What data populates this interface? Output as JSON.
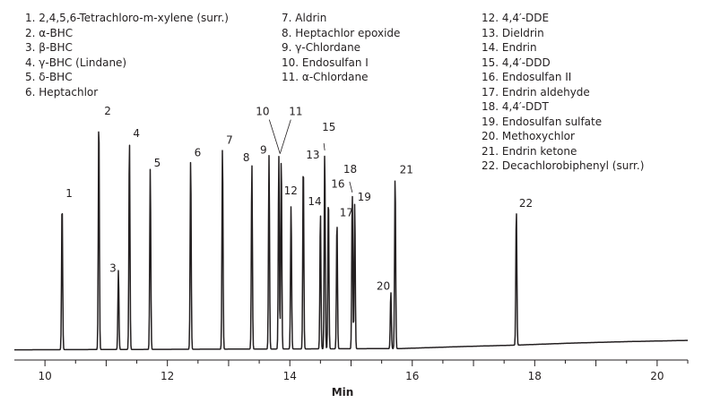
{
  "legend": {
    "columns": [
      [
        {
          "num": "1.",
          "name": "2,4,5,6-Tetrachloro-m-xylene (surr.)"
        },
        {
          "num": "2.",
          "name": "α-BHC"
        },
        {
          "num": "3.",
          "name": "β-BHC"
        },
        {
          "num": "4.",
          "name": "γ-BHC (Lindane)"
        },
        {
          "num": "5.",
          "name": "δ-BHC"
        },
        {
          "num": "6.",
          "name": "Heptachlor"
        }
      ],
      [
        {
          "num": "7.",
          "name": "Aldrin"
        },
        {
          "num": "8.",
          "name": "Heptachlor epoxide"
        },
        {
          "num": "9.",
          "name": "γ-Chlordane"
        },
        {
          "num": "10.",
          "name": "Endosulfan I"
        },
        {
          "num": "11.",
          "name": "α-Chlordane"
        }
      ],
      [
        {
          "num": "12.",
          "name": "4,4′-DDE"
        },
        {
          "num": "13.",
          "name": "Dieldrin"
        },
        {
          "num": "14.",
          "name": "Endrin"
        },
        {
          "num": "15.",
          "name": "4,4′-DDD"
        },
        {
          "num": "16.",
          "name": "Endosulfan II"
        },
        {
          "num": "17.",
          "name": "Endrin aldehyde"
        },
        {
          "num": "18.",
          "name": "4,4′-DDT"
        },
        {
          "num": "19.",
          "name": "Endosulfan sulfate"
        },
        {
          "num": "20.",
          "name": "Methoxychlor"
        },
        {
          "num": "21.",
          "name": "Endrin ketone"
        },
        {
          "num": "22.",
          "name": "Decachlorobiphenyl (surr.)"
        }
      ]
    ]
  },
  "chart_data": {
    "type": "line",
    "title": "",
    "xlabel": "Min",
    "ylabel": "",
    "xlim": [
      9.5,
      20.5
    ],
    "ylim": [
      0,
      100
    ],
    "x_ticks": [
      10,
      12,
      14,
      16,
      18,
      20
    ],
    "grid": false,
    "baseline": [
      [
        9.5,
        0.5
      ],
      [
        15.8,
        1.0
      ],
      [
        16.8,
        1.8
      ],
      [
        17.7,
        2.4
      ],
      [
        18.6,
        3.2
      ],
      [
        19.5,
        3.8
      ],
      [
        20.5,
        4.3
      ]
    ],
    "peaks": [
      {
        "label": "1",
        "x": 10.28,
        "height": 60
      },
      {
        "label": "2",
        "x": 10.88,
        "height": 94
      },
      {
        "label": "3",
        "x": 11.2,
        "height": 32
      },
      {
        "label": "4",
        "x": 11.38,
        "height": 85
      },
      {
        "label": "5",
        "x": 11.72,
        "height": 73
      },
      {
        "label": "6",
        "x": 12.38,
        "height": 77
      },
      {
        "label": "7",
        "x": 12.9,
        "height": 82
      },
      {
        "label": "8",
        "x": 13.38,
        "height": 75
      },
      {
        "label": "9",
        "x": 13.66,
        "height": 78
      },
      {
        "label": "10",
        "x": 13.82,
        "height": 78
      },
      {
        "label": "11",
        "x": 13.86,
        "height": 78
      },
      {
        "label": "12",
        "x": 14.02,
        "height": 58
      },
      {
        "label": "13",
        "x": 14.22,
        "height": 76
      },
      {
        "label": "14",
        "x": 14.5,
        "height": 55
      },
      {
        "label": "15",
        "x": 14.57,
        "height": 80
      },
      {
        "label": "16",
        "x": 14.63,
        "height": 62
      },
      {
        "label": "17",
        "x": 14.77,
        "height": 52
      },
      {
        "label": "18",
        "x": 15.02,
        "height": 63
      },
      {
        "label": "19",
        "x": 15.06,
        "height": 59
      },
      {
        "label": "20",
        "x": 15.65,
        "height": 23
      },
      {
        "label": "21",
        "x": 15.72,
        "height": 70
      },
      {
        "label": "22",
        "x": 17.7,
        "height": 55
      }
    ]
  }
}
